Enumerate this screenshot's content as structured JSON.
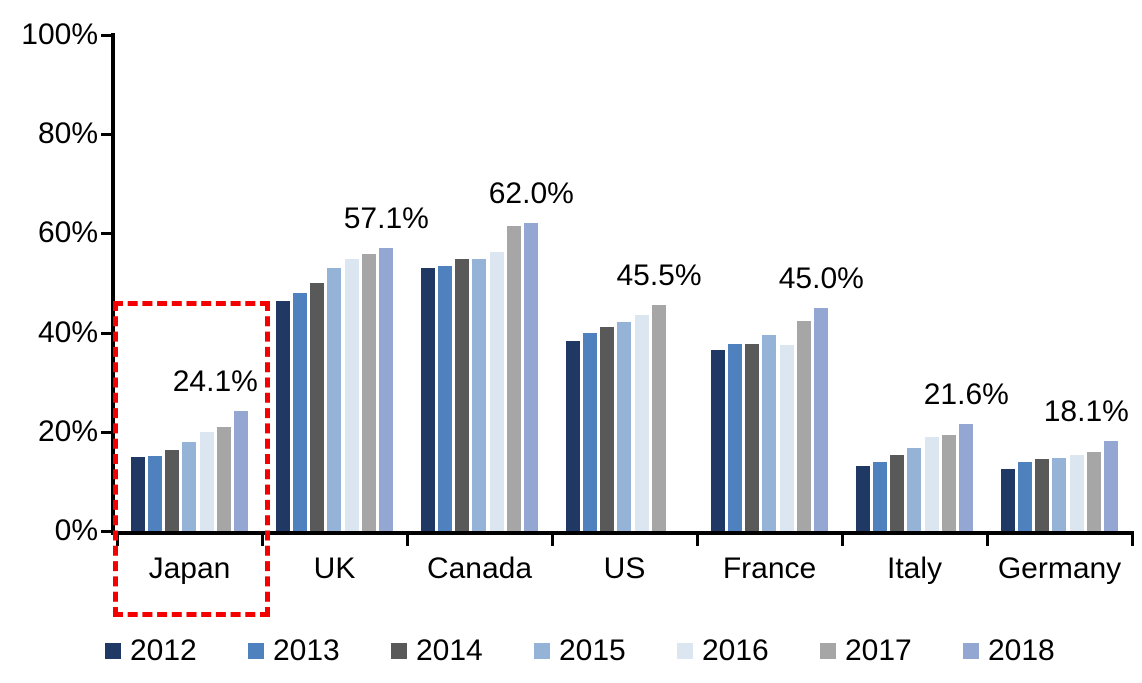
{
  "chart_data": {
    "type": "bar",
    "title": "",
    "xlabel": "",
    "ylabel": "",
    "categories": [
      "Japan",
      "UK",
      "Canada",
      "US",
      "France",
      "Italy",
      "Germany"
    ],
    "series": [
      {
        "name": "2012",
        "color": "#1F3864",
        "values": [
          14.9,
          46.4,
          53.0,
          38.3,
          36.5,
          13.2,
          12.5
        ]
      },
      {
        "name": "2013",
        "color": "#4E81BD",
        "values": [
          15.1,
          47.9,
          53.4,
          40.0,
          37.8,
          14.0,
          13.9
        ]
      },
      {
        "name": "2014",
        "color": "#595959",
        "values": [
          16.4,
          49.9,
          54.9,
          41.1,
          37.7,
          15.4,
          14.5
        ]
      },
      {
        "name": "2015",
        "color": "#95B3D7",
        "values": [
          18.0,
          53.1,
          54.8,
          42.2,
          39.6,
          16.8,
          14.8
        ]
      },
      {
        "name": "2016",
        "color": "#DCE6F1",
        "values": [
          19.9,
          54.8,
          56.2,
          43.6,
          37.5,
          19.0,
          15.4
        ]
      },
      {
        "name": "2017",
        "color": "#A6A6A6",
        "values": [
          21.0,
          55.8,
          61.5,
          45.5,
          42.4,
          19.3,
          15.9
        ]
      },
      {
        "name": "2018",
        "color": "#93A7D2",
        "values": [
          24.1,
          57.1,
          62.0,
          null,
          45.0,
          21.6,
          18.1
        ]
      }
    ],
    "value_labels": [
      {
        "category": "Japan",
        "text": "24.1%"
      },
      {
        "category": "UK",
        "text": "57.1%"
      },
      {
        "category": "Canada",
        "text": "62.0%"
      },
      {
        "category": "US",
        "text": "45.5%"
      },
      {
        "category": "France",
        "text": "45.0%"
      },
      {
        "category": "Italy",
        "text": "21.6%"
      },
      {
        "category": "Germany",
        "text": "18.1%"
      }
    ],
    "ylim": [
      0,
      100
    ],
    "y_ticks": [
      "0%",
      "20%",
      "40%",
      "60%",
      "80%",
      "100%"
    ],
    "grid": false,
    "legend_position": "bottom",
    "legend": [
      "2012",
      "2013",
      "2014",
      "2015",
      "2016",
      "2017",
      "2018"
    ],
    "highlight": {
      "category": "Japan",
      "style": "red-dashed-box",
      "color": "#F40000"
    }
  }
}
